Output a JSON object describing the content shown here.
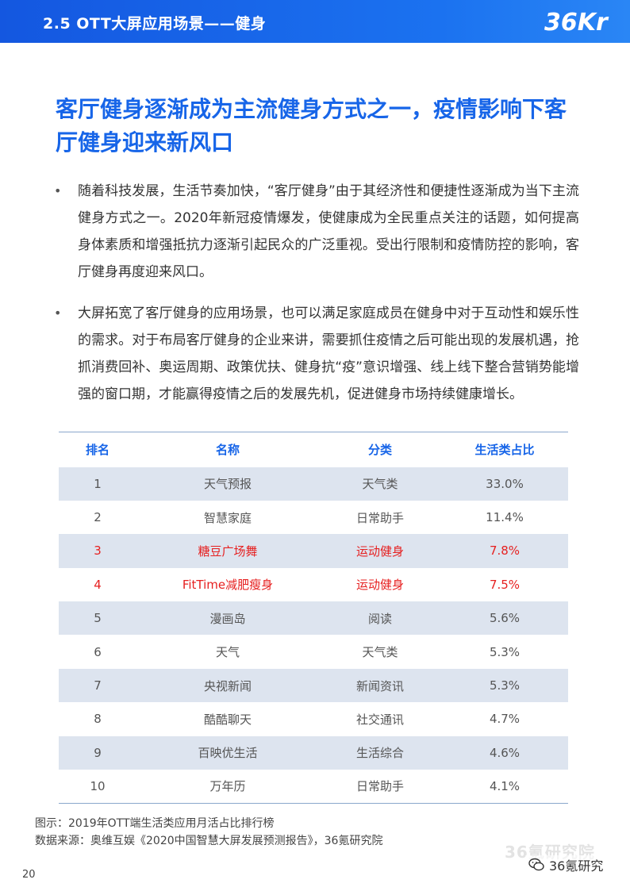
{
  "header": {
    "section_title": "2.5 OTT大屏应用场景——健身",
    "logo_text": "36Kr"
  },
  "headline": "客厅健身逐渐成为主流健身方式之一，疫情影响下客厅健身迎来新风口",
  "bullets": [
    {
      "marker": "•",
      "text": "随着科技发展，生活节奏加快，“客厅健身”由于其经济性和便捷性逐渐成为当下主流健身方式之一。2020年新冠疫情爆发，使健康成为全民重点关注的话题，如何提高身体素质和增强抵抗力逐渐引起民众的广泛重视。受出行限制和疫情防控的影响，客厅健身再度迎来风口。"
    },
    {
      "marker": "•",
      "text": "大屏拓宽了客厅健身的应用场景，也可以满足家庭成员在健身中对于互动性和娱乐性的需求。对于布局客厅健身的企业来讲，需要抓住疫情之后可能出现的发展机遇，抢抓消费回补、奥运周期、政策优扶、健身抗“疫”意识增强、线上线下整合营销势能增强的窗口期，才能赢得疫情之后的发展先机，促进健身市场持续健康增长。"
    }
  ],
  "table": {
    "headers": {
      "rank": "排名",
      "name": "名称",
      "category": "分类",
      "share": "生活类占比"
    },
    "rows": [
      {
        "rank": "1",
        "name": "天气预报",
        "category": "天气类",
        "share": "33.0%"
      },
      {
        "rank": "2",
        "name": "智慧家庭",
        "category": "日常助手",
        "share": "11.4%"
      },
      {
        "rank": "3",
        "name": "糖豆广场舞",
        "category": "运动健身",
        "share": "7.8%"
      },
      {
        "rank": "4",
        "name": "FitTime减肥瘦身",
        "category": "运动健身",
        "share": "7.5%"
      },
      {
        "rank": "5",
        "name": "漫画岛",
        "category": "阅读",
        "share": "5.6%"
      },
      {
        "rank": "6",
        "name": "天气",
        "category": "天气类",
        "share": "5.3%"
      },
      {
        "rank": "7",
        "name": "央视新闻",
        "category": "新闻资讯",
        "share": "5.3%"
      },
      {
        "rank": "8",
        "name": "酷酷聊天",
        "category": "社交通讯",
        "share": "4.7%"
      },
      {
        "rank": "9",
        "name": "百映优生活",
        "category": "生活综合",
        "share": "4.6%"
      },
      {
        "rank": "10",
        "name": "万年历",
        "category": "日常助手",
        "share": "4.1%"
      }
    ],
    "highlight_color": "#e62020"
  },
  "caption": {
    "figure": "图示：2019年OTT端生活类应用月活占比排行榜",
    "source": "数据来源：奥维互娱《2020中国智慧大屏发展预测报告》，36氪研究院"
  },
  "footer": {
    "page_number": "20",
    "watermark": "36氪研究院",
    "wechat_label": "36氪研究"
  },
  "colors": {
    "brand_blue": "#1765e8",
    "header_bar": "#1457e0",
    "row_stripe": "#dde4ef"
  }
}
